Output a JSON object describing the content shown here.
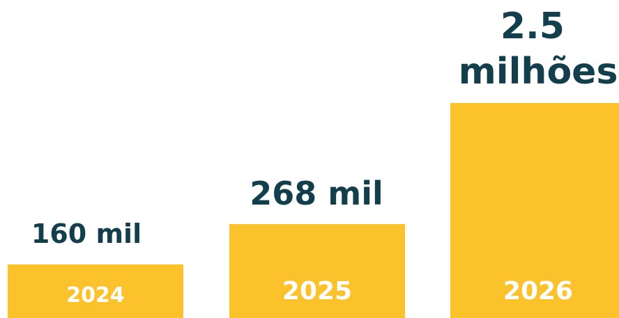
{
  "chart_data": {
    "type": "bar",
    "categories": [
      "2024",
      "2025",
      "2026"
    ],
    "values": [
      160000,
      268000,
      2500000
    ],
    "data_labels": [
      [
        "160 mil"
      ],
      [
        "268 mil"
      ],
      [
        "2.5",
        "milhões"
      ]
    ],
    "title": "",
    "xlabel": "",
    "ylabel": "",
    "grid": false,
    "scale": "nonlinear-visual",
    "colors": {
      "bar": "#FBC22B",
      "value_text": "#123F4B",
      "category_text": "#FFFFFF"
    }
  }
}
